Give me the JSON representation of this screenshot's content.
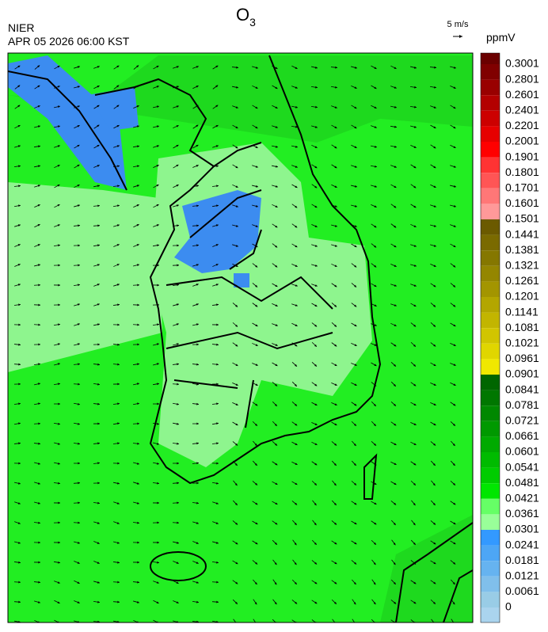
{
  "header": {
    "title_main": "O",
    "title_sub": "3",
    "agency": "NIER",
    "datetime": "APR 05 2026 06:00 KST",
    "vector_scale": "5 m/s"
  },
  "colorbar": {
    "unit": "ppmV",
    "labels": [
      "0.3001",
      "0.2801",
      "0.2601",
      "0.2401",
      "0.2201",
      "0.2001",
      "0.1901",
      "0.1801",
      "0.1701",
      "0.1601",
      "0.1501",
      "0.1441",
      "0.1381",
      "0.1321",
      "0.1261",
      "0.1201",
      "0.1141",
      "0.1081",
      "0.1021",
      "0.0961",
      "0.0901",
      "0.0841",
      "0.0781",
      "0.0721",
      "0.0661",
      "0.0601",
      "0.0541",
      "0.0481",
      "0.0421",
      "0.0361",
      "0.0301",
      "0.0241",
      "0.0181",
      "0.0121",
      "0.0061",
      "0"
    ],
    "colors": [
      "#6b0000",
      "#800000",
      "#990000",
      "#b30000",
      "#cc0000",
      "#e60000",
      "#ff0000",
      "#ff3333",
      "#ff5555",
      "#ff7777",
      "#ff9999",
      "#6b5a00",
      "#7a6a00",
      "#857700",
      "#948600",
      "#a39500",
      "#b3a600",
      "#c2b500",
      "#d1c500",
      "#e0d600",
      "#f0e800",
      "#006600",
      "#007700",
      "#008800",
      "#009900",
      "#00aa00",
      "#00bb00",
      "#00cc00",
      "#00e600",
      "#66ff66",
      "#99ff99",
      "#3399ff",
      "#4da6f5",
      "#66b3f0",
      "#80bfeb",
      "#99cce6",
      "#aad4ee"
    ]
  }
}
